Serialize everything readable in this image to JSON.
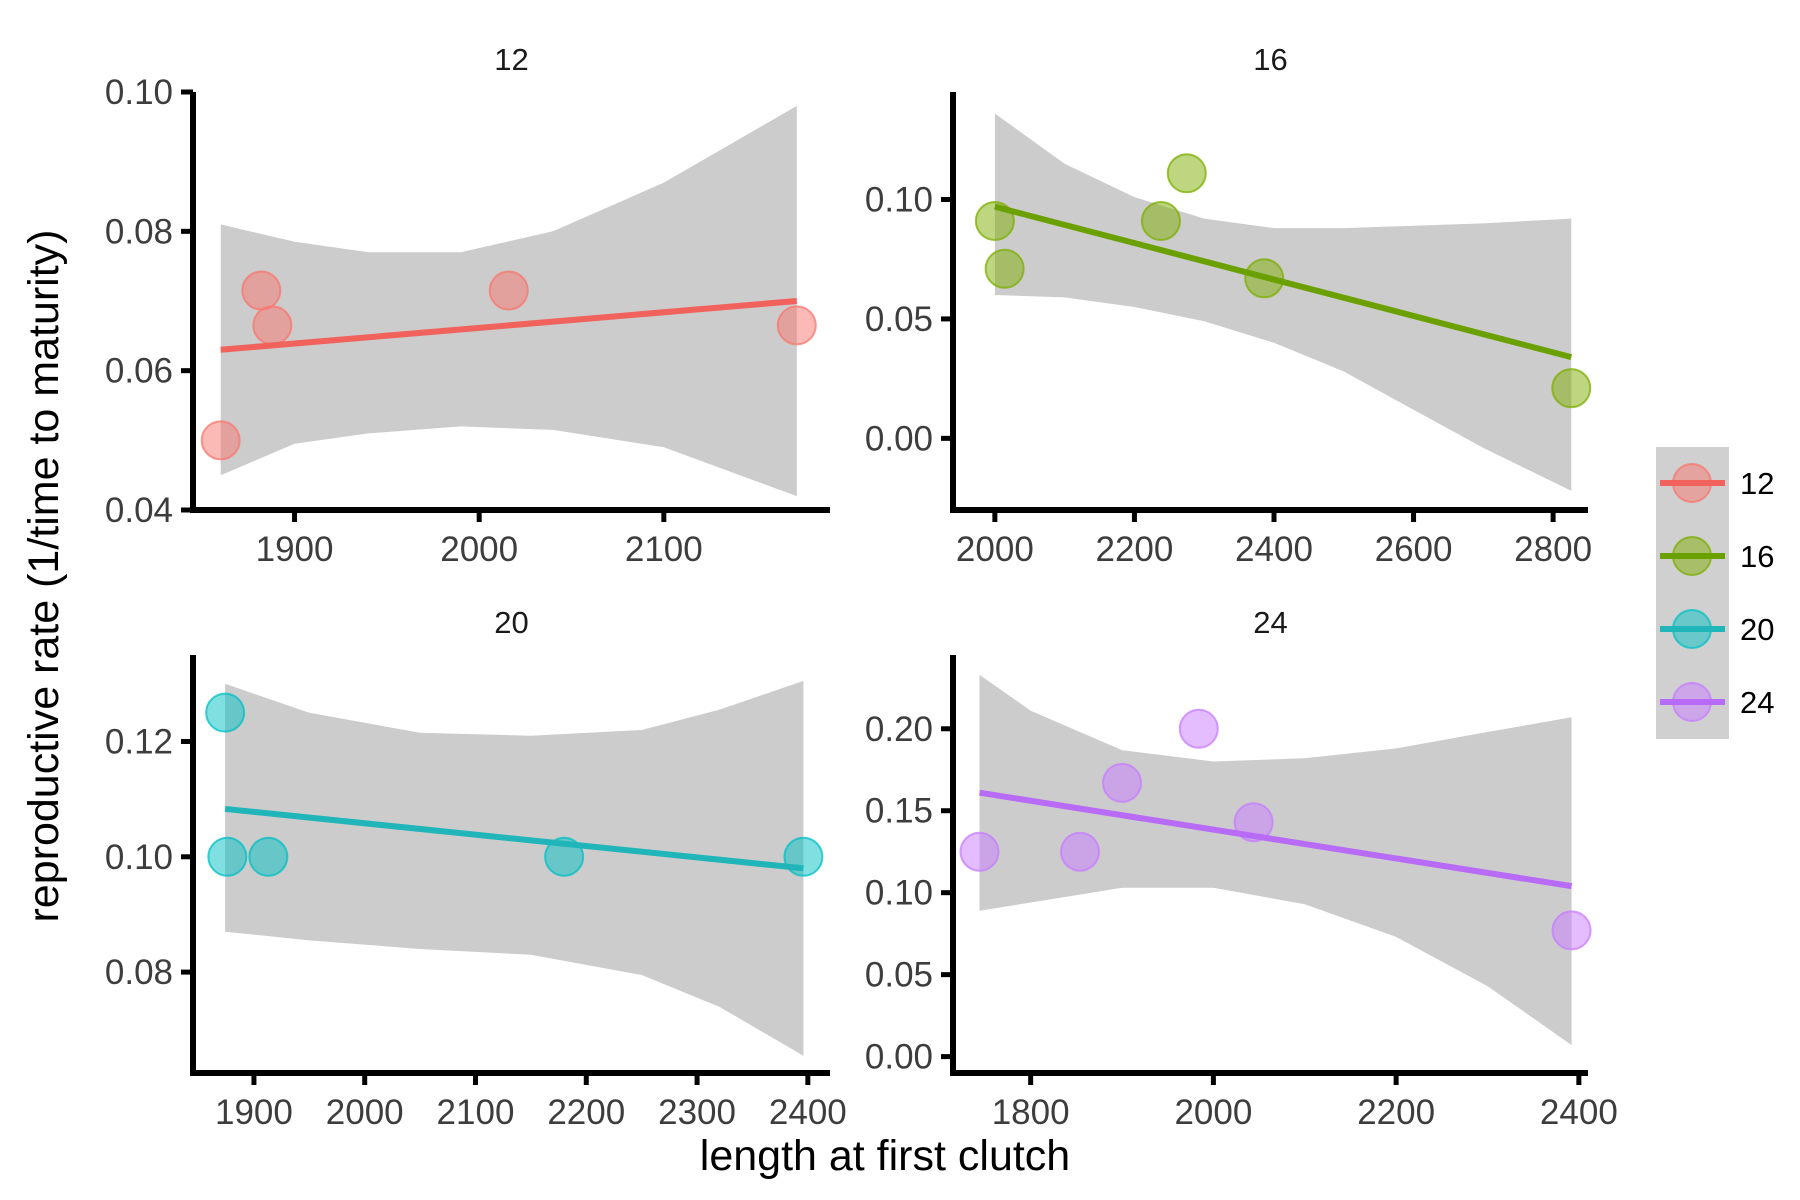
{
  "chart_data": {
    "type": "scatter",
    "xlabel": "length at first clutch",
    "ylabel": "reproductive rate (1/time to maturity)",
    "legend": {
      "placement": "right",
      "entries": [
        "12",
        "16",
        "20",
        "24"
      ]
    },
    "colors": {
      "12": "#F8766D",
      "16": "#7CAE00",
      "20": "#00BFC4",
      "24": "#C77CFF"
    },
    "line_colors": {
      "12": "#F0625B",
      "16": "#6AA100",
      "20": "#1FB5B9",
      "24": "#B86BF6"
    },
    "band_color": "#cccccc",
    "grid": false,
    "panels": [
      {
        "title": "12",
        "xlim": [
          1845,
          2190
        ],
        "ylim": [
          0.04,
          0.1
        ],
        "xticks": [
          1900,
          2000,
          2100
        ],
        "xtick_labels": [
          "1900",
          "2000",
          "2100"
        ],
        "yticks": [
          0.04,
          0.06,
          0.08,
          0.1
        ],
        "ytick_labels": [
          "0.04",
          "0.06",
          "0.08",
          "0.10"
        ],
        "points": {
          "x": [
            1860,
            1882,
            1888,
            2016,
            2172
          ],
          "y": [
            0.05,
            0.0715,
            0.0665,
            0.0715,
            0.0665
          ]
        },
        "fit": {
          "x": [
            1860,
            2172
          ],
          "y": [
            0.063,
            0.07
          ]
        },
        "ci": {
          "x": [
            1860,
            1900,
            1940,
            1990,
            2040,
            2100,
            2172
          ],
          "lower": [
            0.045,
            0.0495,
            0.051,
            0.052,
            0.0515,
            0.049,
            0.042
          ],
          "upper": [
            0.081,
            0.0785,
            0.077,
            0.077,
            0.08,
            0.087,
            0.098
          ]
        }
      },
      {
        "title": "16",
        "xlim": [
          1940,
          2850
        ],
        "ylim": [
          -0.03,
          0.145
        ],
        "xticks": [
          2000,
          2200,
          2400,
          2600,
          2800
        ],
        "xtick_labels": [
          "2000",
          "2200",
          "2400",
          "2600",
          "2800"
        ],
        "yticks": [
          0.0,
          0.05,
          0.1
        ],
        "ytick_labels": [
          "0.00",
          "0.05",
          "0.10"
        ],
        "points": {
          "x": [
            2000,
            2014,
            2238,
            2275,
            2386,
            2826
          ],
          "y": [
            0.091,
            0.071,
            0.091,
            0.111,
            0.067,
            0.021
          ]
        },
        "fit": {
          "x": [
            2000,
            2826
          ],
          "y": [
            0.097,
            0.034
          ]
        },
        "ci": {
          "x": [
            2000,
            2100,
            2200,
            2300,
            2400,
            2500,
            2600,
            2700,
            2826
          ],
          "lower": [
            0.06,
            0.059,
            0.055,
            0.049,
            0.04,
            0.028,
            0.012,
            -0.004,
            -0.022
          ],
          "upper": [
            0.136,
            0.115,
            0.101,
            0.092,
            0.088,
            0.088,
            0.089,
            0.09,
            0.092
          ]
        }
      },
      {
        "title": "20",
        "xlim": [
          1845,
          2420
        ],
        "ylim": [
          0.0625,
          0.135
        ],
        "xticks": [
          1900,
          2000,
          2100,
          2200,
          2300,
          2400
        ],
        "xtick_labels": [
          "1900",
          "2000",
          "2100",
          "2200",
          "2300",
          "2400"
        ],
        "yticks": [
          0.08,
          0.1,
          0.12
        ],
        "ytick_labels": [
          "0.08",
          "0.10",
          "0.12"
        ],
        "points": {
          "x": [
            1874,
            1876,
            1913,
            2180,
            2396
          ],
          "y": [
            0.125,
            0.1,
            0.1,
            0.1,
            0.1
          ]
        },
        "fit": {
          "x": [
            1874,
            2396
          ],
          "y": [
            0.1083,
            0.098
          ]
        },
        "ci": {
          "x": [
            1874,
            1950,
            2050,
            2150,
            2250,
            2320,
            2396
          ],
          "lower": [
            0.087,
            0.0855,
            0.084,
            0.083,
            0.0795,
            0.074,
            0.0655
          ],
          "upper": [
            0.13,
            0.125,
            0.1215,
            0.121,
            0.122,
            0.1255,
            0.1305
          ]
        }
      },
      {
        "title": "24",
        "xlim": [
          1715,
          2410
        ],
        "ylim": [
          -0.01,
          0.245
        ],
        "xticks": [
          1800,
          2000,
          2200,
          2400
        ],
        "xtick_labels": [
          "1800",
          "2000",
          "2200",
          "2400"
        ],
        "yticks": [
          0.0,
          0.05,
          0.1,
          0.15,
          0.2
        ],
        "ytick_labels": [
          "0.00",
          "0.05",
          "0.10",
          "0.15",
          "0.20"
        ],
        "points": {
          "x": [
            1744,
            1854,
            1900,
            1984,
            2044,
            2392
          ],
          "y": [
            0.125,
            0.125,
            0.167,
            0.2,
            0.143,
            0.077
          ]
        },
        "fit": {
          "x": [
            1744,
            2392
          ],
          "y": [
            0.161,
            0.104
          ]
        },
        "ci": {
          "x": [
            1744,
            1800,
            1900,
            2000,
            2100,
            2200,
            2300,
            2392
          ],
          "lower": [
            0.089,
            0.094,
            0.103,
            0.103,
            0.093,
            0.073,
            0.043,
            0.007
          ],
          "upper": [
            0.233,
            0.211,
            0.187,
            0.18,
            0.182,
            0.188,
            0.198,
            0.207
          ]
        }
      }
    ]
  }
}
